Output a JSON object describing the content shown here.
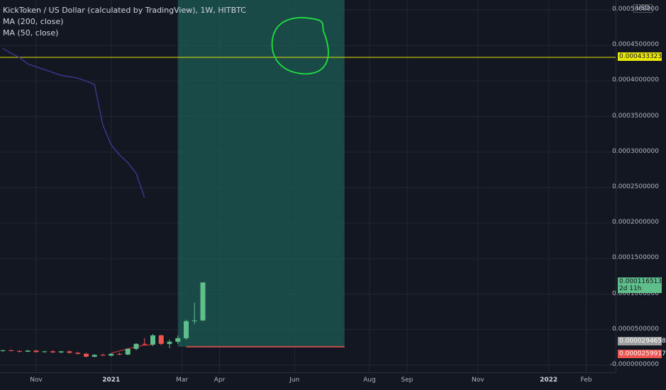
{
  "header": {
    "symbol": "KickToken / US Dollar (calculated by TradingView), 1W, HITBTC",
    "ma200": "MA (200, close)",
    "ma50": "MA (50, close)"
  },
  "colors": {
    "background": "#131722",
    "up": "#5ebf8a",
    "down": "#ef5350",
    "ma200": "#3c3c9a",
    "hline": "#e8e800",
    "zone": "#1e5c55",
    "circle": "#20e040"
  },
  "price_axis": {
    "unit": "USD",
    "ticks": [
      "0.0005000000",
      "0.0004500000",
      "0.0004000000",
      "0.0003500000",
      "0.0003000000",
      "0.0002500000",
      "0.0002000000",
      "0.0001500000",
      "0.0001000000",
      "0.0000500000",
      "-0.0000000000"
    ],
    "labels": [
      {
        "text": "0.0004333234",
        "value": 0.0004333234,
        "color": "#e8e800"
      },
      {
        "text": "0.0001165136",
        "sub": "2d 11h",
        "value": 0.0001165136,
        "color": "#5ebf8a"
      },
      {
        "text": "0.0000294658",
        "value": 2.94658e-05,
        "color": "#9e9e9e"
      },
      {
        "text": "0.0000259917",
        "value": 2.59917e-05,
        "color": "#ef5350"
      }
    ]
  },
  "time_axis": {
    "labels": [
      {
        "text": "Nov",
        "week": 4
      },
      {
        "text": "2021",
        "week": 13,
        "bold": true
      },
      {
        "text": "Mar",
        "week": 21.5
      },
      {
        "text": "Apr",
        "week": 26
      },
      {
        "text": "Jun",
        "week": 35
      },
      {
        "text": "Aug",
        "week": 44
      },
      {
        "text": "Sep",
        "week": 48.5
      },
      {
        "text": "Nov",
        "week": 57
      },
      {
        "text": "2022",
        "week": 65.5,
        "bold": true
      },
      {
        "text": "Feb",
        "week": 70
      }
    ]
  },
  "chart_data": {
    "type": "candlestick",
    "timeframe": "1W",
    "symbol": "KickToken / US Dollar",
    "exchange": "HITBTC",
    "y_range": [
      -1e-05,
      0.000514
    ],
    "candles": [
      {
        "o": 2e-05,
        "h": 2.15e-05,
        "l": 1.85e-05,
        "c": 2.1e-05
      },
      {
        "o": 2.1e-05,
        "h": 2.2e-05,
        "l": 1.95e-05,
        "c": 2e-05
      },
      {
        "o": 2e-05,
        "h": 2.1e-05,
        "l": 1.8e-05,
        "c": 1.9e-05
      },
      {
        "o": 1.9e-05,
        "h": 2.15e-05,
        "l": 1.85e-05,
        "c": 2.05e-05
      },
      {
        "o": 2.05e-05,
        "h": 2.15e-05,
        "l": 1.8e-05,
        "c": 1.85e-05
      },
      {
        "o": 1.85e-05,
        "h": 2e-05,
        "l": 1.75e-05,
        "c": 1.95e-05
      },
      {
        "o": 1.95e-05,
        "h": 2.1e-05,
        "l": 1.75e-05,
        "c": 1.8e-05
      },
      {
        "o": 1.8e-05,
        "h": 2e-05,
        "l": 1.7e-05,
        "c": 1.95e-05
      },
      {
        "o": 1.95e-05,
        "h": 2.05e-05,
        "l": 1.65e-05,
        "c": 1.75e-05
      },
      {
        "o": 1.75e-05,
        "h": 1.85e-05,
        "l": 1.5e-05,
        "c": 1.6e-05
      },
      {
        "o": 1.6e-05,
        "h": 1.75e-05,
        "l": 1.1e-05,
        "c": 1.2e-05
      },
      {
        "o": 1.2e-05,
        "h": 1.55e-05,
        "l": 1.1e-05,
        "c": 1.45e-05
      },
      {
        "o": 1.45e-05,
        "h": 1.65e-05,
        "l": 1.3e-05,
        "c": 1.35e-05
      },
      {
        "o": 1.35e-05,
        "h": 1.7e-05,
        "l": 1.25e-05,
        "c": 1.6e-05
      },
      {
        "o": 1.6e-05,
        "h": 1.75e-05,
        "l": 1.4e-05,
        "c": 1.5e-05
      },
      {
        "o": 1.5e-05,
        "h": 2.4e-05,
        "l": 1.4e-05,
        "c": 2.3e-05
      },
      {
        "o": 2.3e-05,
        "h": 3.1e-05,
        "l": 2.1e-05,
        "c": 3e-05
      },
      {
        "o": 3e-05,
        "h": 3.8e-05,
        "l": 2.8e-05,
        "c": 2.9e-05
      },
      {
        "o": 2.9e-05,
        "h": 4.4e-05,
        "l": 2.7e-05,
        "c": 4.2e-05
      },
      {
        "o": 4.2e-05,
        "h": 4.3e-05,
        "l": 2.8e-05,
        "c": 3e-05
      },
      {
        "o": 3e-05,
        "h": 3.6e-05,
        "l": 2.4e-05,
        "c": 3.3e-05
      },
      {
        "o": 3.3e-05,
        "h": 4.2e-05,
        "l": 3e-05,
        "c": 3.8e-05
      },
      {
        "o": 3.8e-05,
        "h": 6.4e-05,
        "l": 3.6e-05,
        "c": 6.2e-05
      },
      {
        "o": 6.2e-05,
        "h": 8.8e-05,
        "l": 5.8e-05,
        "c": 6.3e-05
      },
      {
        "o": 6.3e-05,
        "h": 0.0001165,
        "l": 6.2e-05,
        "c": 0.0001165
      }
    ],
    "ma200": {
      "start_week": 0,
      "values": [
        0.000446,
        0.000439,
        0.000433,
        0.000424,
        0.00042,
        0.000416,
        0.000412,
        0.000408,
        0.000406,
        0.000404,
        0.0004,
        0.000395,
        0.000338,
        0.00031,
        0.000296,
        0.000285,
        0.00027,
        0.000236
      ]
    },
    "ma50": {
      "start_week": 13,
      "values": [
        1.7e-05,
        2e-05,
        2.3e-05,
        2.6e-05,
        2.8e-05,
        2.9e-05
      ]
    },
    "horizontal_line": 0.0004333234,
    "bottom_level": 2.59917e-05,
    "shaded_zone": {
      "from_week": 21,
      "to_week": 41,
      "color": "#1e5c55"
    },
    "drawn_circle": {
      "center_week": 36,
      "center_value": 0.000448,
      "note": ""
    },
    "last_price": 0.0001165136
  }
}
